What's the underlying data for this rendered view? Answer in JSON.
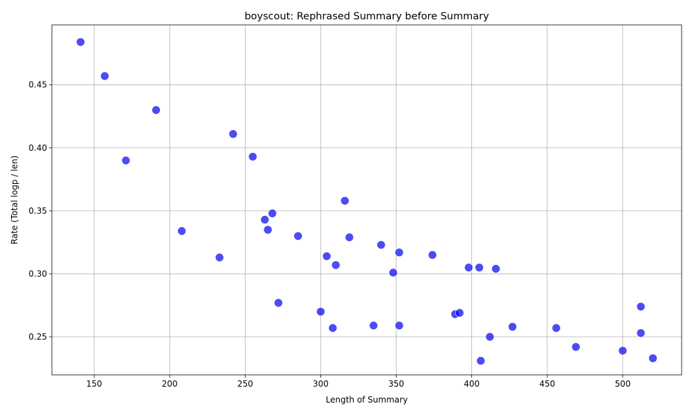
{
  "chart_data": {
    "type": "scatter",
    "title": "boyscout: Rephrased Summary before Summary",
    "xlabel": "Length of Summary",
    "ylabel": "Rate (Total logp / len)",
    "xlim": [
      122,
      539
    ],
    "ylim": [
      0.2198,
      0.4976
    ],
    "xticks": [
      150,
      200,
      250,
      300,
      350,
      400,
      450,
      500
    ],
    "yticks": [
      0.25,
      0.3,
      0.35,
      0.4,
      0.45
    ],
    "xtick_labels": [
      "150",
      "200",
      "250",
      "300",
      "350",
      "400",
      "450",
      "500"
    ],
    "ytick_labels": [
      "0.25",
      "0.30",
      "0.35",
      "0.40",
      "0.45"
    ],
    "grid": true,
    "point_color": "#0000ee",
    "point_alpha": 0.7,
    "points": [
      {
        "x": 141,
        "y": 0.484
      },
      {
        "x": 157,
        "y": 0.457
      },
      {
        "x": 191,
        "y": 0.43
      },
      {
        "x": 171,
        "y": 0.39
      },
      {
        "x": 242,
        "y": 0.411
      },
      {
        "x": 255,
        "y": 0.393
      },
      {
        "x": 208,
        "y": 0.334
      },
      {
        "x": 233,
        "y": 0.313
      },
      {
        "x": 268,
        "y": 0.348
      },
      {
        "x": 263,
        "y": 0.343
      },
      {
        "x": 265,
        "y": 0.335
      },
      {
        "x": 285,
        "y": 0.33
      },
      {
        "x": 316,
        "y": 0.358
      },
      {
        "x": 319,
        "y": 0.329
      },
      {
        "x": 304,
        "y": 0.314
      },
      {
        "x": 310,
        "y": 0.307
      },
      {
        "x": 340,
        "y": 0.323
      },
      {
        "x": 352,
        "y": 0.317
      },
      {
        "x": 374,
        "y": 0.315
      },
      {
        "x": 348,
        "y": 0.301
      },
      {
        "x": 272,
        "y": 0.277
      },
      {
        "x": 300,
        "y": 0.27
      },
      {
        "x": 308,
        "y": 0.257
      },
      {
        "x": 335,
        "y": 0.259
      },
      {
        "x": 352,
        "y": 0.259
      },
      {
        "x": 389,
        "y": 0.268
      },
      {
        "x": 392,
        "y": 0.269
      },
      {
        "x": 398,
        "y": 0.305
      },
      {
        "x": 405,
        "y": 0.305
      },
      {
        "x": 416,
        "y": 0.304
      },
      {
        "x": 412,
        "y": 0.25
      },
      {
        "x": 406,
        "y": 0.231
      },
      {
        "x": 427,
        "y": 0.258
      },
      {
        "x": 456,
        "y": 0.257
      },
      {
        "x": 469,
        "y": 0.242
      },
      {
        "x": 500,
        "y": 0.239
      },
      {
        "x": 512,
        "y": 0.274
      },
      {
        "x": 512,
        "y": 0.253
      },
      {
        "x": 520,
        "y": 0.233
      }
    ]
  }
}
